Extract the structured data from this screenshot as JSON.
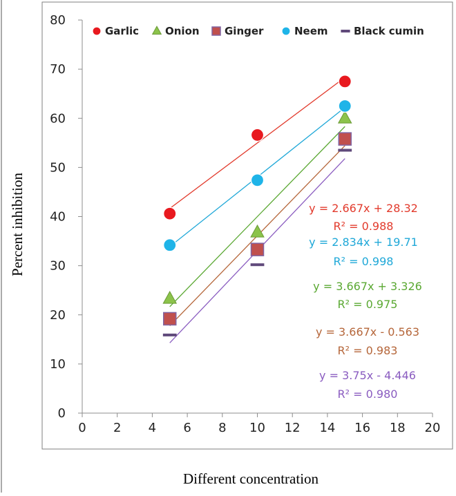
{
  "chart_data": {
    "type": "scatter",
    "title": "",
    "xlabel": "Different concentration",
    "ylabel": "Percent inhibition",
    "xlim": [
      0,
      20
    ],
    "ylim": [
      0,
      80
    ],
    "x_ticks": [
      0,
      2,
      4,
      6,
      8,
      10,
      12,
      14,
      16,
      18,
      20
    ],
    "y_ticks": [
      0,
      10,
      20,
      30,
      40,
      50,
      60,
      70,
      80
    ],
    "grid": false,
    "legend_position": "top",
    "series": [
      {
        "name": "Garlic",
        "marker": "circle",
        "color": "#e8191f",
        "x": [
          5,
          10,
          15
        ],
        "y": [
          40.6,
          56.6,
          67.5
        ],
        "trendline": {
          "slope": 2.667,
          "intercept": 28.32,
          "equation": "y = 2.667x + 28.32",
          "r2": "R² = 0.988",
          "color": "#e23a2c"
        }
      },
      {
        "name": "Onion",
        "marker": "triangle",
        "color": "#8cc34b",
        "x": [
          5,
          10,
          15
        ],
        "y": [
          23.3,
          36.8,
          60.0
        ],
        "trendline": {
          "slope": 3.667,
          "intercept": 3.326,
          "equation": "y = 3.667x + 3.326",
          "r2": "R² = 0.975",
          "color": "#5aa832"
        }
      },
      {
        "name": "Ginger",
        "marker": "square",
        "color": "#c0504d",
        "x": [
          5,
          10,
          15
        ],
        "y": [
          19.2,
          33.3,
          55.8
        ],
        "trendline": {
          "slope": 3.667,
          "intercept": -0.563,
          "equation": "y = 3.667x - 0.563",
          "r2": "R² = 0.983",
          "color": "#b5663a"
        }
      },
      {
        "name": "Neem",
        "marker": "circle",
        "color": "#1fb4e8",
        "x": [
          5,
          10,
          15
        ],
        "y": [
          34.2,
          47.4,
          62.5
        ],
        "trendline": {
          "slope": 2.834,
          "intercept": 19.71,
          "equation": "y = 2.834x + 19.71",
          "r2": "R² = 0.998",
          "color": "#1fa8d8"
        }
      },
      {
        "name": "Black cumin",
        "marker": "dash",
        "color": "#604a7b",
        "x": [
          5,
          10,
          15
        ],
        "y": [
          15.9,
          30.2,
          53.5
        ],
        "trendline": {
          "slope": 3.75,
          "intercept": -4.446,
          "equation": "y = 3.75x - 4.446",
          "r2": "R² = 0.980",
          "color": "#8a5cc0"
        }
      }
    ]
  }
}
